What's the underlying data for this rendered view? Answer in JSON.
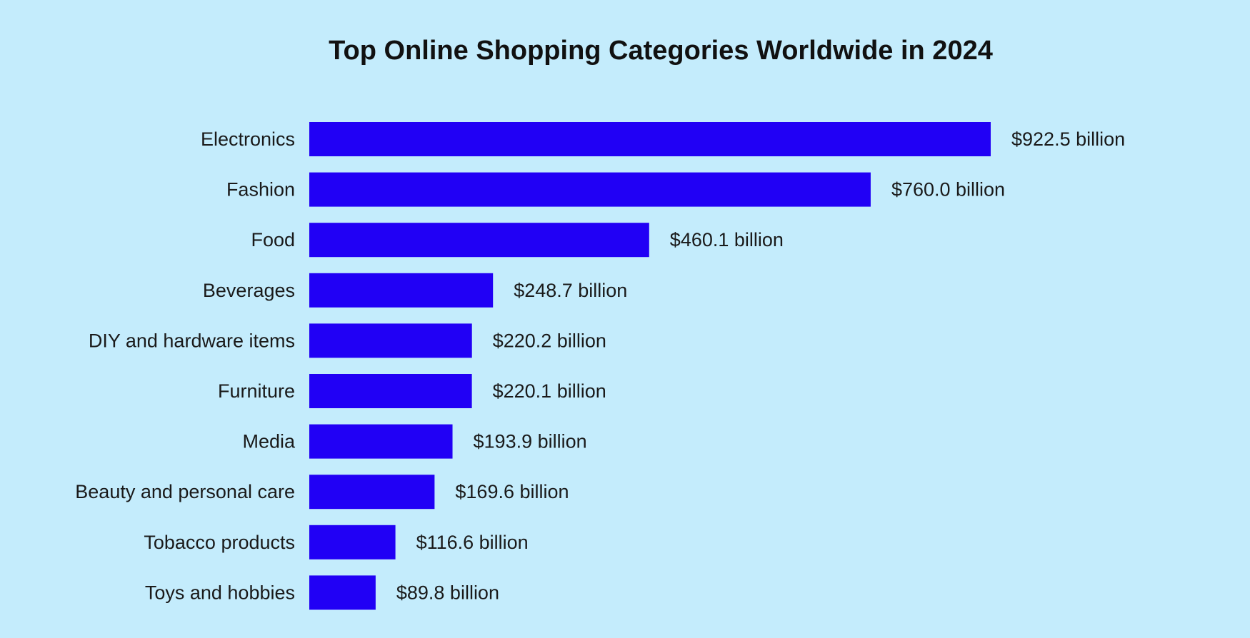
{
  "colors": {
    "background": "#c4ecfc",
    "bar": "#2100f5",
    "text": "#111111"
  },
  "chart_data": {
    "type": "bar",
    "orientation": "horizontal",
    "title": "Top Online Shopping Categories Worldwide in 2024",
    "xlabel": "",
    "ylabel": "",
    "grid": false,
    "categories": [
      "Electronics",
      "Fashion",
      "Food",
      "Beverages",
      "DIY and hardware items",
      "Furniture",
      "Media",
      "Beauty and personal care",
      "Tobacco products",
      "Toys and hobbies"
    ],
    "values": [
      922.5,
      760.0,
      460.1,
      248.7,
      220.2,
      220.1,
      193.9,
      169.6,
      116.6,
      89.8
    ],
    "value_labels": [
      "$922.5 billion",
      "$760.0 billion",
      "$460.1 billion",
      "$248.7 billion",
      "$220.2 billion",
      "$220.1 billion",
      "$193.9 billion",
      "$169.6 billion",
      "$116.6 billion",
      "$89.8 billion"
    ],
    "xlim": [
      0,
      922.5
    ]
  }
}
